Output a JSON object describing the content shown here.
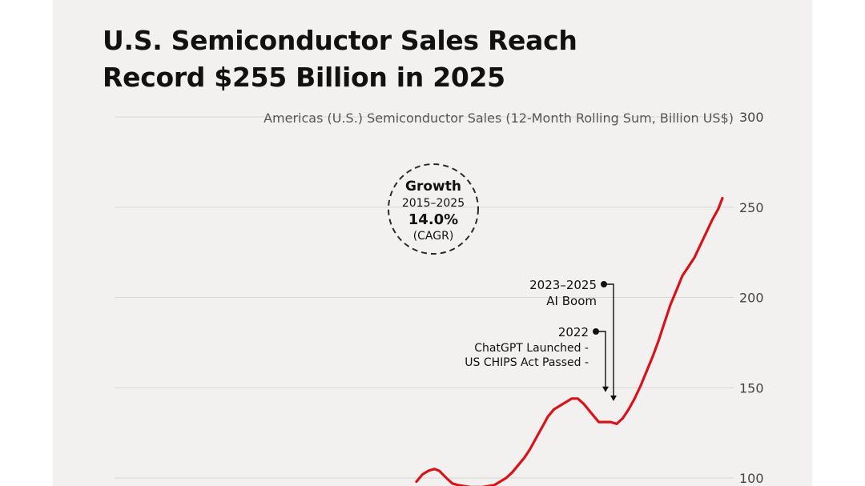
{
  "title_lines": [
    "U.S. Semiconductor Sales Reach",
    "Record $255 Billion in 2025"
  ],
  "chart_data": {
    "type": "line",
    "title": "U.S. Semiconductor Sales Reach Record $255 Billion in 2025",
    "ylabel": "Americas (U.S.) Semiconductor Sales (12-Month Rolling Sum, Billion US$)",
    "xlabel": "",
    "ylim": [
      100,
      300
    ],
    "yticks": [
      100,
      150,
      200,
      250,
      300
    ],
    "grid": true,
    "line_color": "#d7141a",
    "series": [
      {
        "name": "Americas (U.S.) Semiconductor Sales",
        "points": [
          [
            2020.6,
            98
          ],
          [
            2020.7,
            102
          ],
          [
            2020.8,
            104
          ],
          [
            2020.9,
            105
          ],
          [
            2020.98,
            104
          ],
          [
            2021.1,
            100
          ],
          [
            2021.2,
            97
          ],
          [
            2021.3,
            96
          ],
          [
            2021.5,
            95
          ],
          [
            2021.7,
            95
          ],
          [
            2021.9,
            96
          ],
          [
            2022.0,
            98
          ],
          [
            2022.1,
            100
          ],
          [
            2022.2,
            103
          ],
          [
            2022.3,
            107
          ],
          [
            2022.4,
            111
          ],
          [
            2022.5,
            116
          ],
          [
            2022.6,
            122
          ],
          [
            2022.7,
            128
          ],
          [
            2022.8,
            134
          ],
          [
            2022.9,
            138
          ],
          [
            2023.0,
            140
          ],
          [
            2023.1,
            142
          ],
          [
            2023.2,
            144
          ],
          [
            2023.3,
            144
          ],
          [
            2023.4,
            141
          ],
          [
            2023.5,
            137
          ],
          [
            2023.6,
            133
          ],
          [
            2023.65,
            131
          ],
          [
            2023.75,
            131
          ],
          [
            2023.85,
            131
          ],
          [
            2023.95,
            130
          ],
          [
            2024.05,
            133
          ],
          [
            2024.15,
            138
          ],
          [
            2024.25,
            144
          ],
          [
            2024.35,
            151
          ],
          [
            2024.45,
            159
          ],
          [
            2024.55,
            167
          ],
          [
            2024.65,
            176
          ],
          [
            2024.75,
            186
          ],
          [
            2024.85,
            196
          ],
          [
            2024.95,
            204
          ],
          [
            2025.05,
            212
          ],
          [
            2025.15,
            217
          ],
          [
            2025.25,
            222
          ],
          [
            2025.35,
            229
          ],
          [
            2025.45,
            236
          ],
          [
            2025.55,
            243
          ],
          [
            2025.65,
            249
          ],
          [
            2025.72,
            255
          ]
        ]
      }
    ],
    "annotations": [
      {
        "label_lines": [
          "2023–2025",
          "AI Boom"
        ],
        "target_x": 2023.45
      },
      {
        "label_lines": [
          "2022",
          "ChatGPT Launched -",
          "US CHIPS Act Passed -"
        ],
        "target_x": 2023.25
      }
    ],
    "callout": {
      "lines": [
        "Growth",
        "2015–2025",
        "14.0%",
        "(CAGR)"
      ]
    }
  }
}
